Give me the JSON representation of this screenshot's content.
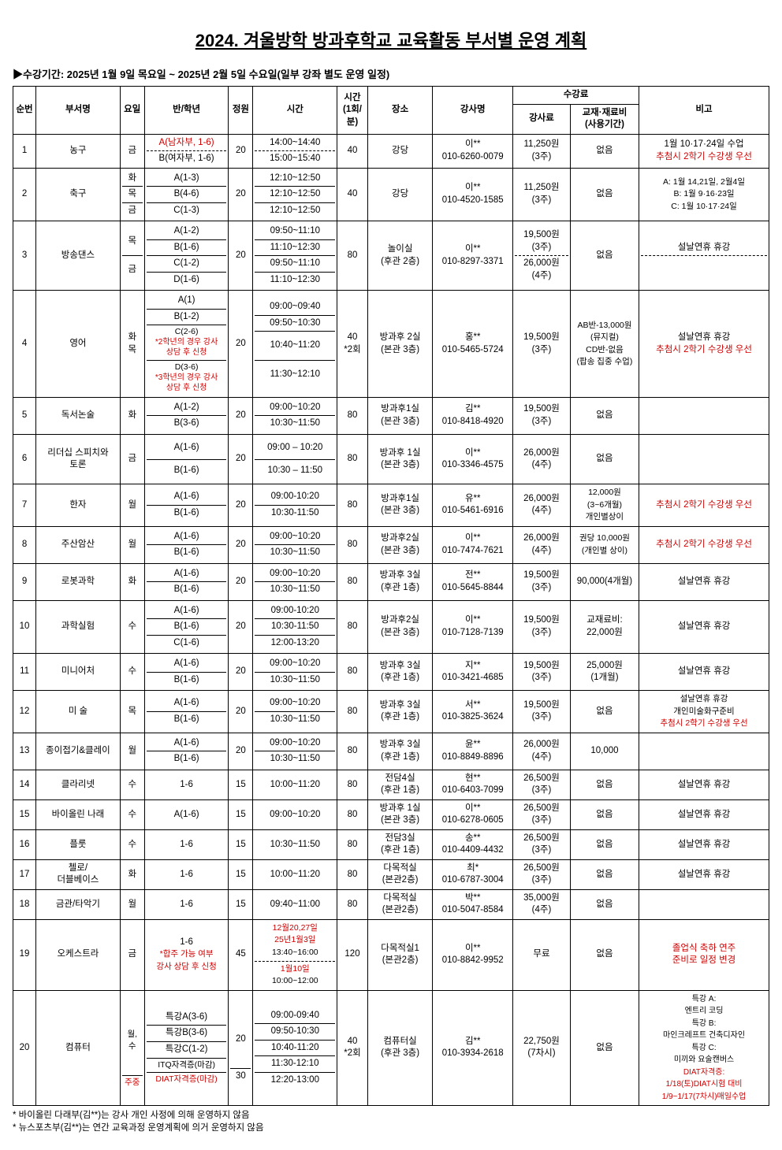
{
  "title": "2024. 겨울방학 방과후학교 교육활동 부서별 운영 계획",
  "period_prefix": "▶수강기간: ",
  "period_text": "2025년 1월 9일 목요일 ~ 2025년 2월 5일 수요일(일부 강좌 별도 운영 일정)",
  "headers": {
    "no": "순번",
    "dept": "부서명",
    "day": "요일",
    "class": "반/학년",
    "cap": "정원",
    "time": "시간",
    "dur": "시간\n(1회/\n분)",
    "place": "장소",
    "inst": "강사명",
    "fee_group": "수강료",
    "fee1": "강사료",
    "fee2": "교재·재료비\n(사용기간)",
    "note": "비고"
  },
  "rows": [
    {
      "no": "1",
      "dept": "농구",
      "day": "금",
      "class_html": "<span class='red'>A(남자부, 1-6)</span><div class='dotdiv'></div>B(여자부, 1-6)",
      "cap": "20",
      "time_html": "14:00~14:40<div class='dotdiv'></div>15:00~15:40",
      "dur": "40",
      "place": "강당",
      "inst": "이**<br>010-6260-0079",
      "fee1": "11,250원<br>(3주)",
      "fee2": "없음",
      "note_html": "1월 10·17·24일 수업<br><span class='red'>추첨시 2학기 수강생 우선</span>"
    },
    {
      "no": "2",
      "dept": "축구",
      "day_html": "<div class='inner-row'>화</div><div class='inner-row'>목</div><div class='inner-row'>금</div>",
      "class_html": "<div class='inner-row'>A(1-3)</div><div class='inner-row'>B(4-6)</div><div class='inner-row'>C(1-3)</div>",
      "cap": "20",
      "time_html": "<div class='inner-row'>12:10~12:50</div><div class='inner-row'>12:10~12:50</div><div class='inner-row'>12:10~12:50</div>",
      "dur": "40",
      "place": "강당",
      "inst": "이**<br>010-4520-1585",
      "fee1": "11,250원<br>(3주)",
      "fee2": "없음",
      "note_html": "<span class='small'>A: 1월 14,21일, 2월4일<br>B: 1월 9·16·23일<br>C: 1월 10·17·24일</span>"
    },
    {
      "no": "3",
      "dept": "방송댄스",
      "day_html": "<div class='inner-row' style='padding:10px 0'>목</div><div class='inner-row' style='padding:10px 0'>금</div>",
      "class_html": "<div class='inner-row'>A(1-2)</div><div class='inner-row'>B(1-6)</div><div class='inner-row'>C(1-2)</div><div class='inner-row'>D(1-6)</div>",
      "cap": "20",
      "time_html": "<div class='inner-row'>09:50~11:10</div><div class='inner-row'>11:10~12:30</div><div class='inner-row'>09:50~11:10</div><div class='inner-row'>11:10~12:30</div>",
      "dur": "80",
      "place": "놀이실<br>(후관 2층)",
      "inst": "이**<br>010-8297-3371",
      "fee1_html": "19,500원<br>(3주)<div class='dotdiv'></div>26,000원<br>(4주)",
      "fee2": "없음",
      "note_html": "설날연휴 휴강<div class='dotdiv'></div>&nbsp;"
    },
    {
      "no": "4",
      "dept": "영어",
      "day": "화\n목",
      "class_html": "<div class='inner-row'>A(1)</div><div class='inner-row'>B(1-2)</div><div class='inner-row small'>C(2-6)<br><span class='red xs'>*2학년의 경우 강사<br>상담 후 신청</span></div><div class='inner-row small'>D(3-6)<br><span class='red xs'>*3학년의 경우 강사<br>상담 후 신청</span></div>",
      "cap": "20",
      "time_html": "<div class='inner-row'>09:00~09:40</div><div class='inner-row'>09:50~10:30</div><div class='inner-row' style='padding:10px 0'>10:40~11:20</div><div class='inner-row' style='padding:10px 0'>11:30~12:10</div>",
      "dur": "40<br>*2회",
      "place": "방과후 2실<br>(본관 3층)",
      "inst": "홍**<br>010-5465-5724",
      "fee1": "19,500원<br>(3주)",
      "fee2_html": "<span class='small'>AB반-13,000원<br>(뮤지컬)<br>CD반-없음<br>(팝송 집중 수업)</span>",
      "note_html": "설날연휴 휴강<br><span class='red'>추첨시 2학기 수강생 우선</span>"
    },
    {
      "no": "5",
      "dept": "독서논술",
      "day": "화",
      "class_html": "<div class='inner-row'>A(1-2)</div><div class='inner-row'>B(3-6)</div>",
      "cap": "20",
      "time_html": "<div class='inner-row'>09:00~10:20</div><div class='inner-row'>10:30~11:50</div>",
      "dur": "80",
      "place": "방과후1실<br>(본관 3층)",
      "inst": "김**<br>010-8418-4920",
      "fee1": "19,500원<br>(3주)",
      "fee2": "없음",
      "note_html": ""
    },
    {
      "no": "6",
      "dept": "리더십 스피치와<br>토론",
      "day": "금",
      "class_html": "<div class='inner-row' style='padding:6px 0'>A(1-6)</div><div class='inner-row' style='padding:6px 0'>B(1-6)</div>",
      "cap": "20",
      "time_html": "<div class='inner-row' style='padding:6px 0'>09:00 – 10:20</div><div class='inner-row' style='padding:6px 0'>10:30 – 11:50</div>",
      "dur": "80",
      "place": "방과후 1실<br>(본관 3층)",
      "inst": "이**<br>010-3346-4575",
      "fee1": "26,000원<br>(4주)",
      "fee2": "없음",
      "note_html": ""
    },
    {
      "no": "7",
      "dept": "한자",
      "day": "월",
      "class_html": "<div class='inner-row'>A(1-6)</div><div class='inner-row'>B(1-6)</div>",
      "cap": "20",
      "time_html": "<div class='inner-row'>09:00-10:20</div><div class='inner-row'>10:30-11:50</div>",
      "dur": "80",
      "place": "방과후1실<br>(본관 3층)",
      "inst": "유**<br>010-5461-6916",
      "fee1": "26,000원<br>(4주)",
      "fee2_html": "<span class='small'>12,000원<br>(3~6개월)<br>개인별상이</span>",
      "note_html": "<span class='red'>추첨시 2학기 수강생 우선</span>"
    },
    {
      "no": "8",
      "dept": "주산암산",
      "day": "월",
      "class_html": "<div class='inner-row'>A(1-6)</div><div class='inner-row'>B(1-6)</div>",
      "cap": "20",
      "time_html": "<div class='inner-row'>09:00~10:20</div><div class='inner-row'>10:30~11:50</div>",
      "dur": "80",
      "place": "방과후2실<br>(본관 3층)",
      "inst": "이**<br>010-7474-7621",
      "fee1": "26,000원<br>(4주)",
      "fee2_html": "<span class='small'>권당 10,000원<br>(개인별 상이)</span>",
      "note_html": "<span class='red'>추첨시 2학기 수강생 우선</span>"
    },
    {
      "no": "9",
      "dept": "로봇과학",
      "day": "화",
      "class_html": "<div class='inner-row'>A(1-6)</div><div class='inner-row'>B(1-6)</div>",
      "cap": "20",
      "time_html": "<div class='inner-row'>09:00~10:20</div><div class='inner-row'>10:30~11:50</div>",
      "dur": "80",
      "place": "방과후 3실<br>(후관 1층)",
      "inst": "전**<br>010-5645-8844",
      "fee1": "19,500원<br>(3주)",
      "fee2": "90,000(4개월)",
      "note_html": "설날연휴 휴강"
    },
    {
      "no": "10",
      "dept": "과학실험",
      "day": "수",
      "class_html": "<div class='inner-row'>A(1-6)</div><div class='inner-row'>B(1-6)</div><div class='inner-row'>C(1-6)</div>",
      "cap": "20",
      "time_html": "<div class='inner-row'>09:00-10:20</div><div class='inner-row'>10:30-11:50</div><div class='inner-row'>12:00-13:20</div>",
      "dur": "80",
      "place": "방과후2실<br>(본관 3층)",
      "inst": "이**<br>010-7128-7139",
      "fee1": "19,500원<br>(3주)",
      "fee2": "교재료비:<br>22,000원",
      "note_html": "설날연휴 휴강"
    },
    {
      "no": "11",
      "dept": "미니어처",
      "day": "수",
      "class_html": "<div class='inner-row'>A(1-6)</div><div class='inner-row'>B(1-6)</div>",
      "cap": "20",
      "time_html": "<div class='inner-row'>09:00~10:20</div><div class='inner-row'>10:30~11:50</div>",
      "dur": "80",
      "place": "방과후 3실<br>(후관 1층)",
      "inst": "지**<br>010-3421-4685",
      "fee1": "19,500원<br>(3주)",
      "fee2": "25,000원<br>(1개월)",
      "note_html": "설날연휴 휴강"
    },
    {
      "no": "12",
      "dept": "미 술",
      "day": "목",
      "class_html": "<div class='inner-row'>A(1-6)</div><div class='inner-row'>B(1-6)</div>",
      "cap": "20",
      "time_html": "<div class='inner-row'>09:00~10:20</div><div class='inner-row'>10:30~11:50</div>",
      "dur": "80",
      "place": "방과후 3실<br>(후관 1층)",
      "inst": "서**<br>010-3825-3624",
      "fee1": "19,500원<br>(3주)",
      "fee2": "없음",
      "note_html": "<span class='small'>설날연휴 휴강<br>개인미술화구준비</span><br><span class='red small'>추첨시 2학기 수강생 우선</span>"
    },
    {
      "no": "13",
      "dept": "종이접기&클레이",
      "day": "월",
      "class_html": "<div class='inner-row'>A(1-6)</div><div class='inner-row'>B(1-6)</div>",
      "cap": "20",
      "time_html": "<div class='inner-row'>09:00~10:20</div><div class='inner-row'>10:30~11:50</div>",
      "dur": "80",
      "place": "방과후 3실<br>(후관 1층)",
      "inst": "윤**<br>010-8849-8896",
      "fee1": "26,000원<br>(4주)",
      "fee2": "10,000",
      "note_html": ""
    },
    {
      "no": "14",
      "dept": "클라리넷",
      "day": "수",
      "class_html": "1-6",
      "cap": "15",
      "time_html": "10:00~11:20",
      "dur": "80",
      "place": "전담4실<br>(후관 1층)",
      "inst": "현**<br>010-6403-7099",
      "fee1": "26,500원<br>(3주)",
      "fee2": "없음",
      "note_html": "설날연휴 휴강"
    },
    {
      "no": "15",
      "dept": "바이올린 나래",
      "day": "수",
      "class_html": "A(1-6)",
      "cap": "15",
      "time_html": "09:00~10:20",
      "dur": "80",
      "place": "방과후 1실<br>(본관 3층)",
      "inst": "이**<br>010-6278-0605",
      "fee1": "26,500원<br>(3주)",
      "fee2": "없음",
      "note_html": "설날연휴 휴강"
    },
    {
      "no": "16",
      "dept": "플룻",
      "day": "수",
      "class_html": "1-6",
      "cap": "15",
      "time_html": "10:30~11:50",
      "dur": "80",
      "place": "전담3실<br>(후관 1층)",
      "inst": "송**<br>010-4409-4432",
      "fee1": "26,500원<br>(3주)",
      "fee2": "없음",
      "note_html": "설날연휴 휴강"
    },
    {
      "no": "17",
      "dept": "첼로/<br>더블베이스",
      "day": "화",
      "class_html": "1-6",
      "cap": "15",
      "time_html": "10:00~11:20",
      "dur": "80",
      "place": "다목적실<br>(본관2층)",
      "inst": "최*<br>010-6787-3004",
      "fee1": "26,500원<br>(3주)",
      "fee2": "없음",
      "note_html": "설날연휴 휴강"
    },
    {
      "no": "18",
      "dept": "금관/타악기",
      "day": "월",
      "class_html": "1-6",
      "cap": "15",
      "time_html": "09:40~11:00",
      "dur": "80",
      "place": "다목적실<br>(본관2층)",
      "inst": "박**<br>010-5047-8584",
      "fee1": "35,000원<br>(4주)",
      "fee2": "없음",
      "note_html": ""
    },
    {
      "no": "19",
      "dept": "오케스트라",
      "day": "금",
      "class_html": "1-6<br><span class='red small'>*합주 가능 여부<br>강사 상담 후 신청</span>",
      "cap": "45",
      "time_html": "<span class='red small'>12월20,27일<br>25년1월3일</span><br><span class='small'>13:40~16:00</span><div class='dotdiv'></div><span class='red small'>1월10일</span><br><span class='small'>10:00~12:00</span>",
      "dur": "120",
      "place": "다목적실1<br>(본관2층)",
      "inst": "이**<br>010-8842-9952",
      "fee1": "무료",
      "fee2": "없음",
      "note_html": "<span class='red'>졸업식 축하 연주<br>준비로 일정 변경</span>"
    },
    {
      "no": "20",
      "dept": "컴퓨터",
      "day_html": "<div class='inner-row' style='padding:28px 0'><span class='small'>월,<br>수</span></div><div class='inner-row red small'>주중</div>",
      "class_html": "<div class='inner-row'>특강A(3-6)</div><div class='inner-row'>특강B(3-6)</div><div class='inner-row'>특강C(1-2)</div><div class='inner-row small'>ITQ자격증(마감)</div><div class='inner-row small red'>DIAT자격증(마감)</div>",
      "cap_html": "<div class='inner-row' style='padding:28px 0'>20</div><div class='inner-row'>30</div>",
      "time_html": "<div class='inner-row'>09:00-09:40</div><div class='inner-row'>09:50-10:30</div><div class='inner-row'>10:40-11:20</div><div class='inner-row'>11:30-12:10</div><div class='inner-row'>12:20-13:00</div>",
      "dur": "40<br>*2회",
      "place": "컴퓨터실<br>(후관 3층)",
      "inst": "김**<br>010-3934-2618",
      "fee1": "22,750원<br>(7차시)",
      "fee2": "없음",
      "note_html": "<span class='xs'>특강 A:<br>엔트리 코딩<br>특강 B:<br>마인크레프트 건축디자인<br>특강 C:<br>미끼와 요술캔버스<br><span class='red'>DIAT자격증:<br>1/18(토)DIAT시험 대비<br>1/9~1/17(7차시)매일수업</span></span>"
    }
  ],
  "footnotes": [
    "* 바이올린 다래부(김**)는  강사 개인 사정에 의해 운영하지 않음",
    "* 뉴스포츠부(김**)는 연간 교육과정 운영계획에 의거 운영하지 않음"
  ]
}
